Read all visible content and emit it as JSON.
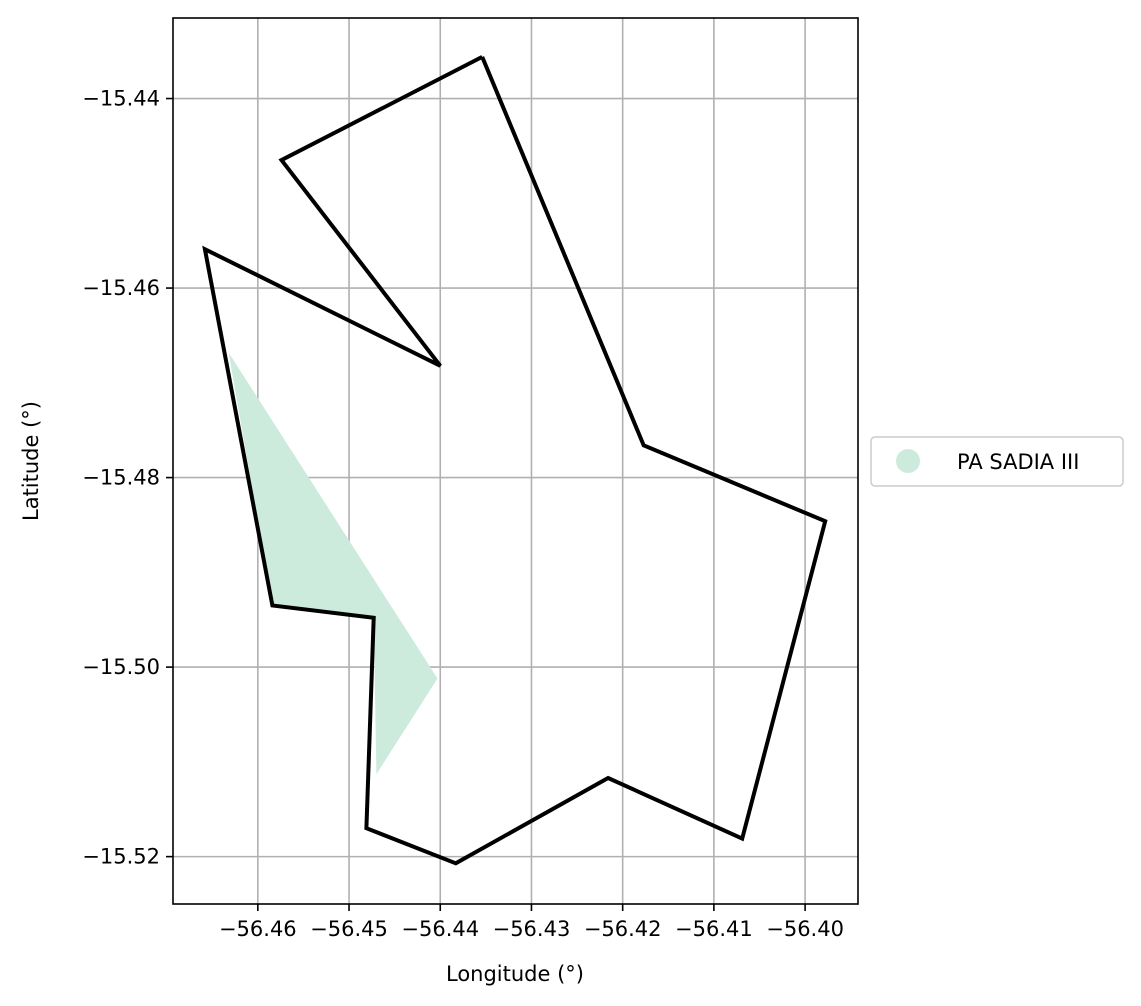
{
  "chart_data": {
    "type": "map",
    "xlabel": "Longitude (°)",
    "ylabel": "Latitude (°)",
    "xlim": [
      -56.4693,
      -56.3942
    ],
    "ylim": [
      -15.525,
      -15.4315
    ],
    "grid": true,
    "x_ticks": [
      {
        "value": -56.46,
        "label": "−56.46"
      },
      {
        "value": -56.45,
        "label": "−56.45"
      },
      {
        "value": -56.44,
        "label": "−56.44"
      },
      {
        "value": -56.43,
        "label": "−56.43"
      },
      {
        "value": -56.42,
        "label": "−56.42"
      },
      {
        "value": -56.41,
        "label": "−56.41"
      },
      {
        "value": -56.4,
        "label": "−56.40"
      }
    ],
    "y_ticks": [
      {
        "value": -15.44,
        "label": "−15.44"
      },
      {
        "value": -15.46,
        "label": "−15.46"
      },
      {
        "value": -15.48,
        "label": "−15.48"
      },
      {
        "value": -15.5,
        "label": "−15.50"
      },
      {
        "value": -15.52,
        "label": "−15.52"
      }
    ],
    "boundary": {
      "color": "#000000",
      "points": [
        [
          -56.4354,
          -15.4356
        ],
        [
          -56.4177,
          -15.4766
        ],
        [
          -56.3978,
          -15.4846
        ],
        [
          -56.4069,
          -15.5181
        ],
        [
          -56.4216,
          -15.5117
        ],
        [
          -56.4383,
          -15.5207
        ],
        [
          -56.4481,
          -15.517
        ],
        [
          -56.4473,
          -15.4948
        ],
        [
          -56.4584,
          -15.4935
        ],
        [
          -56.4658,
          -15.4559
        ],
        [
          -56.44,
          -15.4682
        ],
        [
          -56.4574,
          -15.4465
        ],
        [
          -56.4354,
          -15.4356
        ]
      ]
    },
    "areas": [
      {
        "name": "PA SADIA III",
        "color": "#cdebdd",
        "points": [
          [
            -56.4632,
            -15.4668
          ],
          [
            -56.4403,
            -15.5012
          ],
          [
            -56.447,
            -15.5113
          ],
          [
            -56.4473,
            -15.4948
          ],
          [
            -56.4584,
            -15.4935
          ],
          [
            -56.4632,
            -15.4668
          ]
        ]
      }
    ],
    "legend": {
      "placement": "outside-right",
      "entries": [
        {
          "label": "PA SADIA III",
          "color": "#cdebdd"
        }
      ]
    }
  }
}
